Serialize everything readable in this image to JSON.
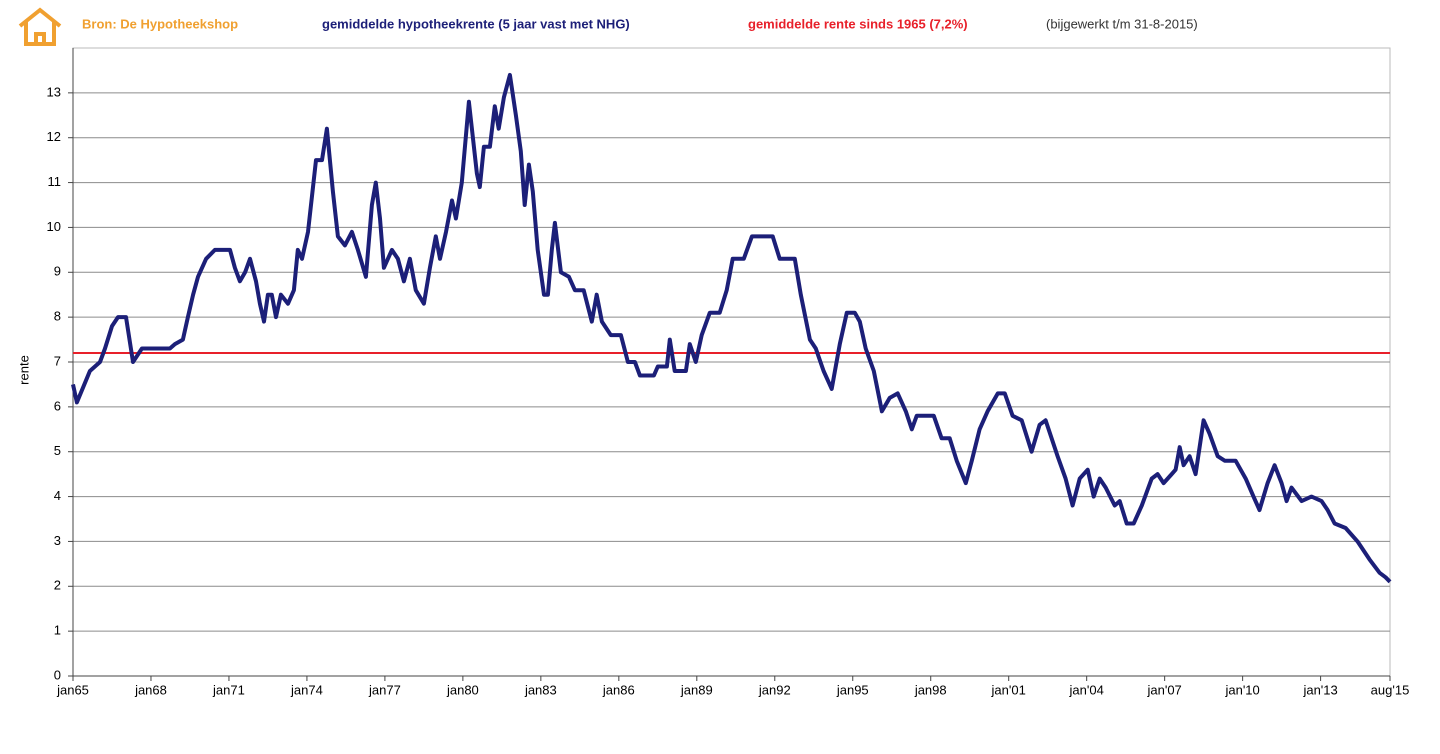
{
  "chart_data": {
    "type": "line",
    "source": "Bron: De Hypotheekshop",
    "note": "(bijgewerkt t/m 31-8-2015)",
    "y_label": "rente",
    "xlim": [
      1965,
      2015.67
    ],
    "ylim": [
      0,
      14
    ],
    "yticks": [
      0,
      1,
      2,
      3,
      4,
      5,
      6,
      7,
      8,
      9,
      10,
      11,
      12,
      13
    ],
    "xticks": [
      {
        "value": 1965,
        "label": "jan65"
      },
      {
        "value": 1968,
        "label": "jan68"
      },
      {
        "value": 1971,
        "label": "jan71"
      },
      {
        "value": 1974,
        "label": "jan74"
      },
      {
        "value": 1977,
        "label": "jan77"
      },
      {
        "value": 1980,
        "label": "jan80"
      },
      {
        "value": 1983,
        "label": "jan83"
      },
      {
        "value": 1986,
        "label": "jan86"
      },
      {
        "value": 1989,
        "label": "jan89"
      },
      {
        "value": 1992,
        "label": "jan92"
      },
      {
        "value": 1995,
        "label": "jan95"
      },
      {
        "value": 1998,
        "label": "jan98"
      },
      {
        "value": 2001,
        "label": "jan'01"
      },
      {
        "value": 2004,
        "label": "jan'04"
      },
      {
        "value": 2007,
        "label": "jan'07"
      },
      {
        "value": 2010,
        "label": "jan'10"
      },
      {
        "value": 2013,
        "label": "jan'13"
      },
      {
        "value": 2015.67,
        "label": "aug'15"
      }
    ],
    "grid": true,
    "reference_line": {
      "name": "gemiddelde rente sinds 1965 (7,2%)",
      "value": 7.2,
      "color": "#e8202a"
    },
    "x": [
      1965.0,
      1965.15,
      1965.65,
      1966.04,
      1966.23,
      1966.5,
      1966.73,
      1967.04,
      1967.31,
      1967.65,
      1968.73,
      1968.92,
      1969.23,
      1969.42,
      1969.62,
      1969.81,
      1970.12,
      1970.46,
      1971.04,
      1971.23,
      1971.42,
      1971.62,
      1971.81,
      1972.04,
      1972.19,
      1972.35,
      1972.5,
      1972.65,
      1972.81,
      1973.0,
      1973.27,
      1973.5,
      1973.65,
      1973.81,
      1974.04,
      1974.35,
      1974.58,
      1974.77,
      1975.0,
      1975.19,
      1975.46,
      1975.73,
      1975.96,
      1976.27,
      1976.5,
      1976.65,
      1976.81,
      1976.96,
      1977.27,
      1977.5,
      1977.73,
      1977.96,
      1978.19,
      1978.5,
      1978.73,
      1978.96,
      1979.12,
      1979.35,
      1979.58,
      1979.73,
      1979.96,
      1980.23,
      1980.54,
      1980.65,
      1980.81,
      1981.04,
      1981.23,
      1981.38,
      1981.58,
      1981.81,
      1982.04,
      1982.23,
      1982.38,
      1982.54,
      1982.69,
      1982.88,
      1983.12,
      1983.27,
      1983.42,
      1983.54,
      1983.77,
      1984.08,
      1984.31,
      1984.65,
      1984.96,
      1985.15,
      1985.35,
      1985.69,
      1986.08,
      1986.35,
      1986.62,
      1986.81,
      1987.35,
      1987.5,
      1987.85,
      1987.96,
      1988.15,
      1988.58,
      1988.73,
      1988.96,
      1989.19,
      1989.5,
      1989.88,
      1990.15,
      1990.38,
      1990.81,
      1991.12,
      1991.92,
      1992.19,
      1992.77,
      1993.0,
      1993.35,
      1993.58,
      1993.88,
      1994.19,
      1994.5,
      1994.77,
      1995.08,
      1995.27,
      1995.5,
      1995.81,
      1996.12,
      1996.42,
      1996.73,
      1997.04,
      1997.27,
      1997.46,
      1998.12,
      1998.42,
      1998.73,
      1999.0,
      1999.35,
      1999.58,
      1999.88,
      2000.19,
      2000.58,
      2000.85,
      2001.15,
      2001.5,
      2001.88,
      2002.19,
      2002.42,
      2002.88,
      2003.19,
      2003.46,
      2003.73,
      2004.04,
      2004.27,
      2004.5,
      2004.73,
      2005.08,
      2005.27,
      2005.54,
      2005.81,
      2006.12,
      2006.5,
      2006.73,
      2006.96,
      2007.27,
      2007.42,
      2007.58,
      2007.73,
      2007.96,
      2008.19,
      2008.5,
      2008.73,
      2009.04,
      2009.31,
      2009.73,
      2010.12,
      2010.42,
      2010.65,
      2010.96,
      2011.23,
      2011.5,
      2011.69,
      2011.88,
      2012.27,
      2012.65,
      2013.04,
      2013.27,
      2013.54,
      2013.96,
      2014.42,
      2014.88,
      2015.27,
      2015.5,
      2015.67
    ],
    "series": [
      {
        "name": "gemiddelde hypotheekrente (5 jaar vast met NHG)",
        "color": "#1c1f78",
        "values": [
          6.5,
          6.1,
          6.8,
          7.0,
          7.3,
          7.8,
          8.0,
          8.0,
          7.0,
          7.3,
          7.3,
          7.4,
          7.5,
          8.0,
          8.5,
          8.9,
          9.3,
          9.5,
          9.5,
          9.1,
          8.8,
          9.0,
          9.3,
          8.8,
          8.3,
          7.9,
          8.5,
          8.5,
          8.0,
          8.5,
          8.3,
          8.6,
          9.5,
          9.3,
          9.9,
          11.5,
          11.5,
          12.2,
          10.8,
          9.8,
          9.6,
          9.9,
          9.5,
          8.9,
          10.5,
          11.0,
          10.2,
          9.1,
          9.5,
          9.3,
          8.8,
          9.3,
          8.6,
          8.3,
          9.1,
          9.8,
          9.3,
          9.9,
          10.6,
          10.2,
          11.0,
          12.8,
          11.2,
          10.9,
          11.8,
          11.8,
          12.7,
          12.2,
          12.9,
          13.4,
          12.5,
          11.7,
          10.5,
          11.4,
          10.8,
          9.5,
          8.5,
          8.5,
          9.5,
          10.1,
          9.0,
          8.9,
          8.6,
          8.6,
          7.9,
          8.5,
          7.9,
          7.6,
          7.6,
          7.0,
          7.0,
          6.7,
          6.7,
          6.9,
          6.9,
          7.5,
          6.8,
          6.8,
          7.4,
          7.0,
          7.6,
          8.1,
          8.1,
          8.6,
          9.3,
          9.3,
          9.8,
          9.8,
          9.3,
          9.3,
          8.5,
          7.5,
          7.3,
          6.8,
          6.4,
          7.4,
          8.1,
          8.1,
          7.9,
          7.3,
          6.8,
          5.9,
          6.2,
          6.3,
          5.9,
          5.5,
          5.8,
          5.8,
          5.3,
          5.3,
          4.8,
          4.3,
          4.8,
          5.5,
          5.9,
          6.3,
          6.3,
          5.8,
          5.7,
          5.0,
          5.6,
          5.7,
          4.9,
          4.4,
          3.8,
          4.4,
          4.6,
          4.0,
          4.4,
          4.2,
          3.8,
          3.9,
          3.4,
          3.4,
          3.8,
          4.4,
          4.5,
          4.3,
          4.5,
          4.6,
          5.1,
          4.7,
          4.9,
          4.5,
          5.7,
          5.4,
          4.9,
          4.8,
          4.8,
          4.4,
          4.0,
          3.7,
          4.3,
          4.7,
          4.3,
          3.9,
          4.2,
          3.9,
          4.0,
          3.9,
          3.7,
          3.4,
          3.3,
          3.0,
          2.6,
          2.3,
          2.2,
          2.1
        ]
      }
    ],
    "source_color": "#f0a030",
    "note_color": "#333333"
  }
}
